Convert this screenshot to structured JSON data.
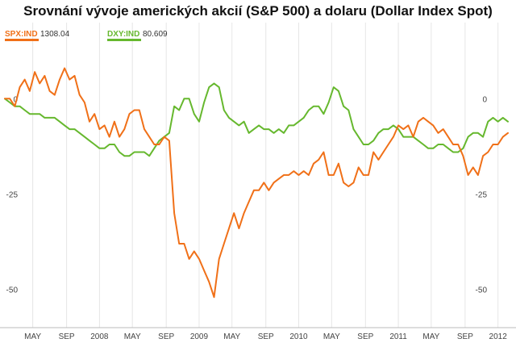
{
  "title": "Srovnání vývoje amerických akcií (S&P 500) a dolaru (Dollar Index Spot)",
  "legend": [
    {
      "symbol": "SPX:IND",
      "value": "1308.04",
      "color": "#f07018"
    },
    {
      "symbol": "DXY:IND",
      "value": "80.609",
      "color": "#66b82e"
    }
  ],
  "chart_data": {
    "type": "line",
    "title": "Srovnání vývoje amerických akcií (S&P 500) a dolaru (Dollar Index Spot)",
    "xlabel": "",
    "ylabel": "",
    "ylim": [
      -60,
      10
    ],
    "xlim": [
      2007.05,
      2012.1
    ],
    "x_ticks": [
      {
        "label": "MAY",
        "x": 2007.33
      },
      {
        "label": "SEP",
        "x": 2007.67
      },
      {
        "label": "2008",
        "x": 2008.0
      },
      {
        "label": "MAY",
        "x": 2008.33
      },
      {
        "label": "SEP",
        "x": 2008.67
      },
      {
        "label": "2009",
        "x": 2009.0
      },
      {
        "label": "MAY",
        "x": 2009.33
      },
      {
        "label": "SEP",
        "x": 2009.67
      },
      {
        "label": "2010",
        "x": 2010.0
      },
      {
        "label": "MAY",
        "x": 2010.33
      },
      {
        "label": "SEP",
        "x": 2010.67
      },
      {
        "label": "2011",
        "x": 2011.0
      },
      {
        "label": "MAY",
        "x": 2011.33
      },
      {
        "label": "SEP",
        "x": 2011.67
      },
      {
        "label": "2012",
        "x": 2012.0
      }
    ],
    "y_ticks_left": [
      "0",
      "-25",
      "-50"
    ],
    "y_ticks_right": [
      "0",
      "-25",
      "-50"
    ],
    "y_tick_values": [
      0,
      -25,
      -50
    ],
    "grid": "vertical",
    "legend_position": "top-left",
    "series": [
      {
        "name": "SPX:IND",
        "color": "#f07018",
        "x": [
          2007.05,
          2007.1,
          2007.15,
          2007.2,
          2007.25,
          2007.3,
          2007.35,
          2007.4,
          2007.45,
          2007.5,
          2007.55,
          2007.6,
          2007.65,
          2007.7,
          2007.75,
          2007.8,
          2007.85,
          2007.9,
          2007.95,
          2008.0,
          2008.05,
          2008.1,
          2008.15,
          2008.2,
          2008.25,
          2008.3,
          2008.35,
          2008.4,
          2008.45,
          2008.5,
          2008.55,
          2008.6,
          2008.65,
          2008.7,
          2008.75,
          2008.8,
          2008.85,
          2008.9,
          2008.95,
          2009.0,
          2009.05,
          2009.1,
          2009.15,
          2009.2,
          2009.25,
          2009.3,
          2009.35,
          2009.4,
          2009.45,
          2009.5,
          2009.55,
          2009.6,
          2009.65,
          2009.7,
          2009.75,
          2009.8,
          2009.85,
          2009.9,
          2009.95,
          2010.0,
          2010.05,
          2010.1,
          2010.15,
          2010.2,
          2010.25,
          2010.3,
          2010.35,
          2010.4,
          2010.45,
          2010.5,
          2010.55,
          2010.6,
          2010.65,
          2010.7,
          2010.75,
          2010.8,
          2010.85,
          2010.9,
          2010.95,
          2011.0,
          2011.05,
          2011.1,
          2011.15,
          2011.2,
          2011.25,
          2011.3,
          2011.35,
          2011.4,
          2011.45,
          2011.5,
          2011.55,
          2011.6,
          2011.65,
          2011.7,
          2011.75,
          2011.8,
          2011.85,
          2011.9,
          2011.95,
          2012.0,
          2012.05,
          2012.1
        ],
        "values": [
          0,
          0,
          -2,
          3,
          5,
          2,
          7,
          4,
          6,
          2,
          1,
          5,
          8,
          5,
          6,
          1,
          -1,
          -6,
          -4,
          -8,
          -7,
          -10,
          -6,
          -10,
          -8,
          -4,
          -3,
          -3,
          -8,
          -10,
          -12,
          -12,
          -10,
          -11,
          -30,
          -38,
          -38,
          -42,
          -40,
          -42,
          -45,
          -48,
          -52,
          -42,
          -38,
          -34,
          -30,
          -34,
          -30,
          -27,
          -24,
          -24,
          -22,
          -24,
          -22,
          -21,
          -20,
          -20,
          -19,
          -20,
          -19,
          -20,
          -17,
          -16,
          -14,
          -20,
          -20,
          -17,
          -22,
          -23,
          -22,
          -18,
          -20,
          -20,
          -14,
          -16,
          -14,
          -12,
          -10,
          -7,
          -8,
          -7,
          -10,
          -6,
          -5,
          -6,
          -7,
          -9,
          -8,
          -10,
          -12,
          -12,
          -15,
          -20,
          -18,
          -20,
          -15,
          -14,
          -12,
          -12,
          -10,
          -9
        ]
      },
      {
        "name": "DXY:IND",
        "color": "#66b82e",
        "x": [
          2007.05,
          2007.1,
          2007.15,
          2007.2,
          2007.25,
          2007.3,
          2007.35,
          2007.4,
          2007.45,
          2007.5,
          2007.55,
          2007.6,
          2007.65,
          2007.7,
          2007.75,
          2007.8,
          2007.85,
          2007.9,
          2007.95,
          2008.0,
          2008.05,
          2008.1,
          2008.15,
          2008.2,
          2008.25,
          2008.3,
          2008.35,
          2008.4,
          2008.45,
          2008.5,
          2008.55,
          2008.6,
          2008.65,
          2008.7,
          2008.75,
          2008.8,
          2008.85,
          2008.9,
          2008.95,
          2009.0,
          2009.05,
          2009.1,
          2009.15,
          2009.2,
          2009.25,
          2009.3,
          2009.35,
          2009.4,
          2009.45,
          2009.5,
          2009.55,
          2009.6,
          2009.65,
          2009.7,
          2009.75,
          2009.8,
          2009.85,
          2009.9,
          2009.95,
          2010.0,
          2010.05,
          2010.1,
          2010.15,
          2010.2,
          2010.25,
          2010.3,
          2010.35,
          2010.4,
          2010.45,
          2010.5,
          2010.55,
          2010.6,
          2010.65,
          2010.7,
          2010.75,
          2010.8,
          2010.85,
          2010.9,
          2010.95,
          2011.0,
          2011.05,
          2011.1,
          2011.15,
          2011.2,
          2011.25,
          2011.3,
          2011.35,
          2011.4,
          2011.45,
          2011.5,
          2011.55,
          2011.6,
          2011.65,
          2011.7,
          2011.75,
          2011.8,
          2011.85,
          2011.9,
          2011.95,
          2012.0,
          2012.05,
          2012.1
        ],
        "values": [
          0,
          -1,
          -2,
          -2,
          -3,
          -4,
          -4,
          -4,
          -5,
          -5,
          -5,
          -6,
          -7,
          -8,
          -8,
          -9,
          -10,
          -11,
          -12,
          -13,
          -13,
          -12,
          -12,
          -14,
          -15,
          -15,
          -14,
          -14,
          -14,
          -15,
          -13,
          -11,
          -10,
          -9,
          -2,
          -3,
          0,
          0,
          -4,
          -6,
          -1,
          3,
          4,
          3,
          -3,
          -5,
          -6,
          -7,
          -6,
          -9,
          -8,
          -7,
          -8,
          -8,
          -9,
          -8,
          -9,
          -7,
          -7,
          -6,
          -5,
          -3,
          -2,
          -2,
          -4,
          -1,
          3,
          2,
          -2,
          -3,
          -8,
          -10,
          -12,
          -12,
          -11,
          -9,
          -8,
          -8,
          -7,
          -8,
          -10,
          -10,
          -10,
          -11,
          -12,
          -13,
          -13,
          -12,
          -12,
          -13,
          -14,
          -14,
          -13,
          -10,
          -9,
          -9,
          -10,
          -6,
          -5,
          -6,
          -5,
          -6
        ]
      }
    ]
  }
}
